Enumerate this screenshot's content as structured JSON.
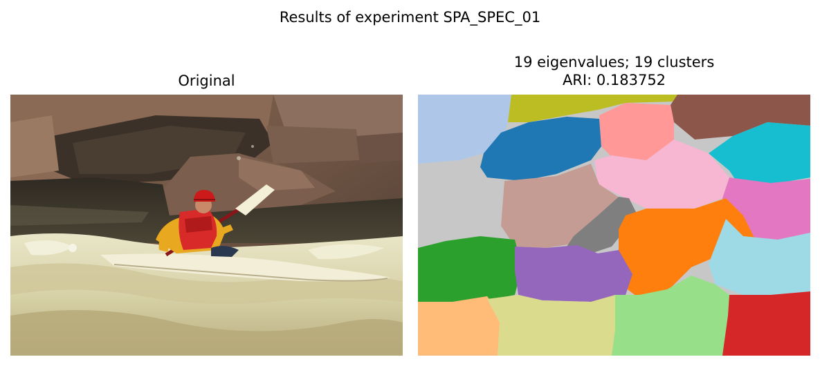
{
  "figure": {
    "suptitle": "Results of experiment SPA_SPEC_01"
  },
  "left_panel": {
    "title": "Original",
    "image_subject": "kayaker in a red helmet and red life vest paddling a white kayak through whitewater rapids beside large granite rocks"
  },
  "right_panel": {
    "title_line1": "19 eigenvalues; 19 clusters",
    "title_line2": "ARI: 0.183752",
    "cluster_colors": [
      "#aec7e8",
      "#bcbd22",
      "#8c564b",
      "#1f77b4",
      "#ff9896",
      "#f7b6d2",
      "#17becf",
      "#c7c7c7",
      "#c49c94",
      "#7f7f7f",
      "#e377c2",
      "#ff7f0e",
      "#2ca02c",
      "#9467bd",
      "#9edae5",
      "#ffbb78",
      "#dbdb8d",
      "#98df8a",
      "#d62728"
    ]
  }
}
